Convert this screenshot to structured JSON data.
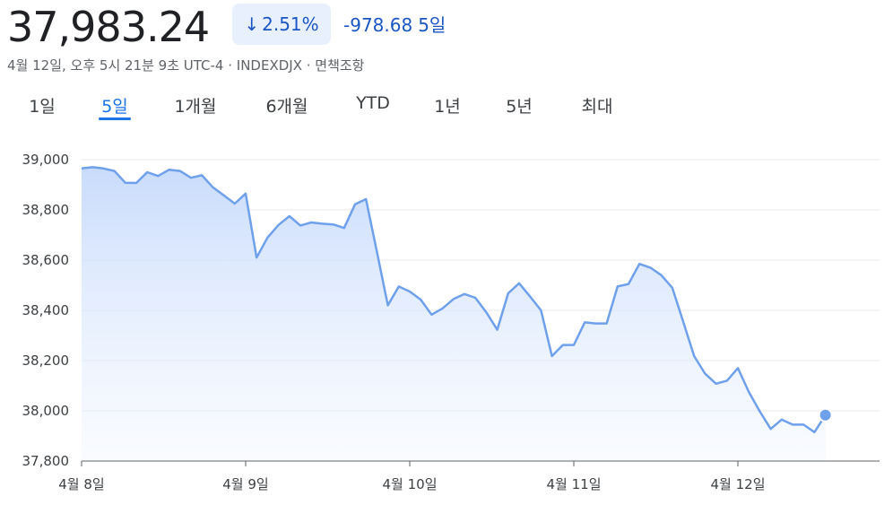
{
  "quote": {
    "price": "37,983.24",
    "change_pct": "2.51%",
    "change_abs": "-978.68",
    "change_period": "5일",
    "meta_line": "4월 12일, 오후 5시 21분 9초 UTC-4 · INDEXDJX · 면책조항",
    "down_arrow_icon": "arrow-down-icon",
    "colors": {
      "accent": "#1a73e8",
      "line": "#6fa0ec",
      "area": "#d2e3fc",
      "down": "#1a56c4"
    }
  },
  "tabs": [
    {
      "label": "1일",
      "active": false
    },
    {
      "label": "5일",
      "active": true
    },
    {
      "label": "1개월",
      "active": false
    },
    {
      "label": "6개월",
      "active": false
    },
    {
      "label": "YTD",
      "active": false
    },
    {
      "label": "1년",
      "active": false
    },
    {
      "label": "5년",
      "active": false
    },
    {
      "label": "최대",
      "active": false
    }
  ],
  "chart_data": {
    "type": "area",
    "title": "",
    "xlabel": "",
    "ylabel": "",
    "ylim": [
      37800,
      39000
    ],
    "yticks": [
      "39,000",
      "38,800",
      "38,600",
      "38,400",
      "38,200",
      "38,000",
      "37,800"
    ],
    "ytick_values": [
      39000,
      38800,
      38600,
      38400,
      38200,
      38000,
      37800
    ],
    "xtick_labels": [
      "4월 8일",
      "4월 9일",
      "4월 10일",
      "4월 11일",
      "4월 12일"
    ],
    "xtick_index": [
      0,
      15,
      30,
      45,
      60
    ],
    "grid": "horizontal",
    "series": [
      {
        "values": [
          38965,
          38970,
          38965,
          38955,
          38908,
          38907,
          38950,
          38935,
          38960,
          38955,
          38928,
          38938,
          38890,
          38858,
          38825,
          38865,
          38610,
          38690,
          38740,
          38775,
          38738,
          38750,
          38745,
          38742,
          38728,
          38822,
          38843,
          38633,
          38420,
          38495,
          38475,
          38443,
          38383,
          38408,
          38445,
          38465,
          38450,
          38392,
          38323,
          38468,
          38508,
          38455,
          38400,
          38218,
          38262,
          38262,
          38352,
          38348,
          38348,
          38495,
          38505,
          38585,
          38570,
          38540,
          38490,
          38355,
          38218,
          38148,
          38108,
          38120,
          38170,
          38075,
          37998,
          37928,
          37965,
          37945,
          37945,
          37915,
          37983
        ]
      }
    ]
  }
}
